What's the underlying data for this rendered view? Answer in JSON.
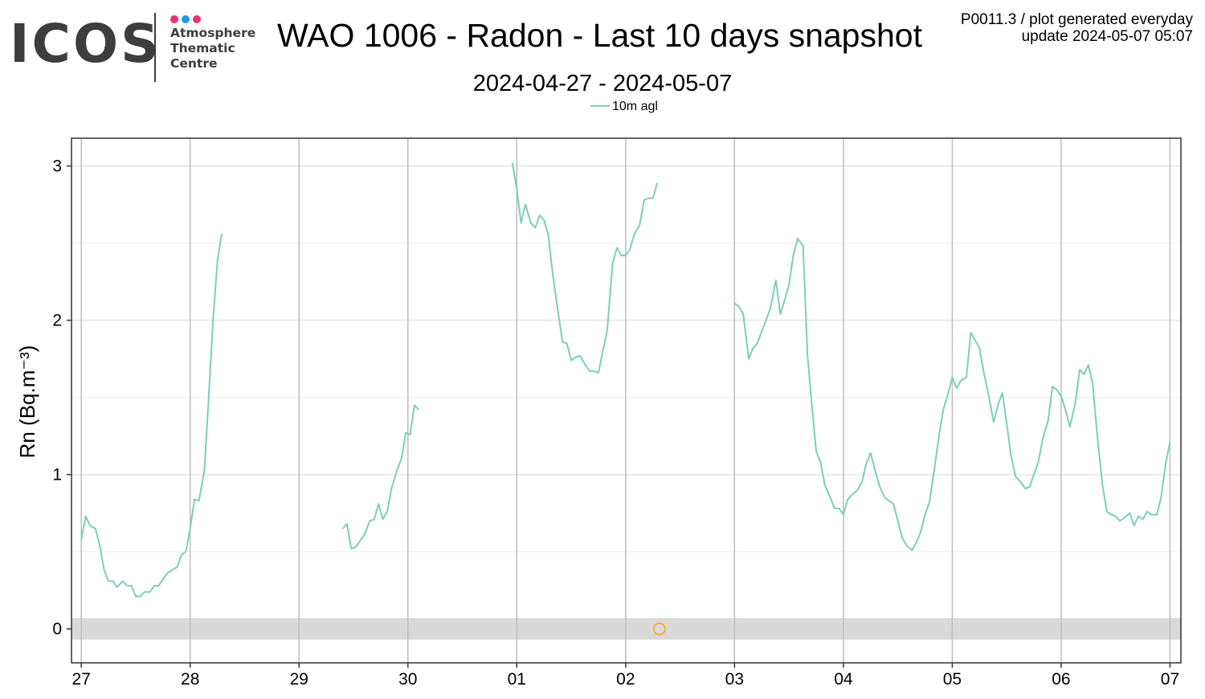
{
  "header": {
    "logo": {
      "word": "ICOS",
      "sub_lines": [
        "Atmosphere",
        "Thematic",
        "Centre"
      ],
      "dot_colors": [
        "#e8356d",
        "#1e9be4",
        "#e8356d"
      ]
    },
    "meta_line1": "P0011.3 / plot generated everyday",
    "meta_line2": "update  2024-05-07 05:07"
  },
  "chart_data": {
    "type": "line",
    "title": "WAO 1006 - Radon - Last 10 days snapshot",
    "subtitle": "2024-04-27 - 2024-05-07",
    "ylabel": "Rn (Bq.m⁻³)",
    "xlabel": "",
    "x_unit": "days since 2024-04-27 00:00",
    "xlim": [
      -0.09,
      10.1
    ],
    "ylim": [
      -0.22,
      3.18
    ],
    "x_ticks": [
      {
        "x": 0,
        "label": "27"
      },
      {
        "x": 1,
        "label": "28"
      },
      {
        "x": 2,
        "label": "29"
      },
      {
        "x": 3,
        "label": "30"
      },
      {
        "x": 4,
        "label": "01"
      },
      {
        "x": 5,
        "label": "02"
      },
      {
        "x": 6,
        "label": "03"
      },
      {
        "x": 7,
        "label": "04"
      },
      {
        "x": 8,
        "label": "05"
      },
      {
        "x": 9,
        "label": "06"
      },
      {
        "x": 10,
        "label": "07"
      }
    ],
    "y_ticks": [
      0,
      1,
      2,
      3
    ],
    "grid": true,
    "legend_position": "top",
    "colors": {
      "series": "#7fcdbb",
      "flag": "#ffa500",
      "band": "#d9d9d9"
    },
    "band": {
      "ymin": -0.07,
      "ymax": 0.07
    },
    "series": [
      {
        "name": "10m agl",
        "segments": [
          [
            [
              0.0,
              0.58
            ],
            [
              0.04,
              0.73
            ],
            [
              0.08,
              0.67
            ],
            [
              0.13,
              0.65
            ],
            [
              0.17,
              0.54
            ],
            [
              0.21,
              0.38
            ],
            [
              0.25,
              0.31
            ],
            [
              0.29,
              0.31
            ],
            [
              0.33,
              0.27
            ],
            [
              0.38,
              0.31
            ],
            [
              0.42,
              0.28
            ],
            [
              0.46,
              0.28
            ],
            [
              0.5,
              0.21
            ],
            [
              0.54,
              0.21
            ],
            [
              0.58,
              0.24
            ],
            [
              0.63,
              0.24
            ],
            [
              0.67,
              0.28
            ],
            [
              0.71,
              0.28
            ],
            [
              0.75,
              0.32
            ],
            [
              0.79,
              0.36
            ],
            [
              0.83,
              0.38
            ],
            [
              0.88,
              0.4
            ],
            [
              0.92,
              0.48
            ],
            [
              0.96,
              0.5
            ],
            [
              1.0,
              0.65
            ],
            [
              1.04,
              0.84
            ],
            [
              1.08,
              0.83
            ],
            [
              1.13,
              1.02
            ],
            [
              1.17,
              1.5
            ],
            [
              1.21,
              2.0
            ],
            [
              1.25,
              2.38
            ],
            [
              1.29,
              2.56
            ]
          ],
          [
            [
              2.4,
              0.65
            ],
            [
              2.44,
              0.68
            ],
            [
              2.48,
              0.52
            ],
            [
              2.52,
              0.53
            ],
            [
              2.56,
              0.57
            ],
            [
              2.6,
              0.61
            ],
            [
              2.65,
              0.7
            ],
            [
              2.69,
              0.71
            ],
            [
              2.73,
              0.81
            ],
            [
              2.77,
              0.71
            ],
            [
              2.81,
              0.76
            ],
            [
              2.85,
              0.91
            ],
            [
              2.9,
              1.03
            ],
            [
              2.94,
              1.1
            ],
            [
              2.98,
              1.27
            ],
            [
              3.02,
              1.26
            ],
            [
              3.06,
              1.45
            ],
            [
              3.1,
              1.42
            ]
          ],
          [
            [
              3.96,
              3.02
            ],
            [
              4.0,
              2.85
            ],
            [
              4.04,
              2.63
            ],
            [
              4.08,
              2.75
            ],
            [
              4.13,
              2.63
            ],
            [
              4.17,
              2.6
            ],
            [
              4.21,
              2.68
            ],
            [
              4.25,
              2.65
            ],
            [
              4.29,
              2.55
            ],
            [
              4.33,
              2.3
            ],
            [
              4.38,
              2.05
            ],
            [
              4.42,
              1.86
            ],
            [
              4.46,
              1.85
            ],
            [
              4.5,
              1.74
            ],
            [
              4.54,
              1.76
            ],
            [
              4.58,
              1.77
            ],
            [
              4.63,
              1.71
            ],
            [
              4.67,
              1.67
            ],
            [
              4.71,
              1.67
            ],
            [
              4.75,
              1.66
            ],
            [
              4.79,
              1.8
            ],
            [
              4.83,
              1.93
            ],
            [
              4.88,
              2.37
            ],
            [
              4.92,
              2.47
            ],
            [
              4.96,
              2.42
            ],
            [
              5.0,
              2.42
            ],
            [
              5.04,
              2.46
            ],
            [
              5.08,
              2.56
            ],
            [
              5.13,
              2.62
            ],
            [
              5.17,
              2.78
            ],
            [
              5.21,
              2.79
            ],
            [
              5.25,
              2.79
            ],
            [
              5.29,
              2.89
            ]
          ],
          [
            [
              6.0,
              2.11
            ],
            [
              6.04,
              2.09
            ],
            [
              6.08,
              2.04
            ],
            [
              6.13,
              1.75
            ],
            [
              6.17,
              1.82
            ],
            [
              6.21,
              1.85
            ],
            [
              6.25,
              1.93
            ],
            [
              6.29,
              2.0
            ],
            [
              6.33,
              2.08
            ],
            [
              6.38,
              2.26
            ],
            [
              6.42,
              2.04
            ],
            [
              6.46,
              2.13
            ],
            [
              6.5,
              2.23
            ],
            [
              6.54,
              2.42
            ],
            [
              6.58,
              2.53
            ],
            [
              6.63,
              2.48
            ],
            [
              6.67,
              1.78
            ],
            [
              6.71,
              1.45
            ],
            [
              6.75,
              1.15
            ],
            [
              6.79,
              1.08
            ],
            [
              6.83,
              0.93
            ],
            [
              6.88,
              0.85
            ],
            [
              6.92,
              0.78
            ],
            [
              6.96,
              0.78
            ],
            [
              7.0,
              0.74
            ],
            [
              7.04,
              0.84
            ],
            [
              7.08,
              0.87
            ],
            [
              7.13,
              0.9
            ],
            [
              7.17,
              0.95
            ],
            [
              7.21,
              1.07
            ],
            [
              7.25,
              1.14
            ],
            [
              7.29,
              1.03
            ],
            [
              7.33,
              0.93
            ],
            [
              7.38,
              0.85
            ],
            [
              7.42,
              0.83
            ],
            [
              7.46,
              0.81
            ],
            [
              7.5,
              0.7
            ],
            [
              7.54,
              0.59
            ],
            [
              7.58,
              0.54
            ],
            [
              7.63,
              0.51
            ],
            [
              7.67,
              0.56
            ],
            [
              7.71,
              0.63
            ],
            [
              7.75,
              0.74
            ],
            [
              7.79,
              0.82
            ],
            [
              7.83,
              1.01
            ],
            [
              7.88,
              1.26
            ],
            [
              7.92,
              1.43
            ],
            [
              7.96,
              1.52
            ],
            [
              8.0,
              1.63
            ],
            [
              8.04,
              1.56
            ],
            [
              8.08,
              1.61
            ],
            [
              8.13,
              1.63
            ],
            [
              8.17,
              1.92
            ],
            [
              8.21,
              1.87
            ],
            [
              8.25,
              1.82
            ],
            [
              8.29,
              1.66
            ],
            [
              8.33,
              1.53
            ],
            [
              8.38,
              1.34
            ],
            [
              8.42,
              1.45
            ],
            [
              8.46,
              1.53
            ],
            [
              8.5,
              1.33
            ],
            [
              8.54,
              1.12
            ],
            [
              8.58,
              0.99
            ],
            [
              8.63,
              0.95
            ],
            [
              8.67,
              0.91
            ],
            [
              8.71,
              0.92
            ],
            [
              8.75,
              1.0
            ],
            [
              8.79,
              1.08
            ],
            [
              8.83,
              1.23
            ],
            [
              8.88,
              1.35
            ],
            [
              8.92,
              1.57
            ],
            [
              8.96,
              1.55
            ],
            [
              9.0,
              1.51
            ],
            [
              9.04,
              1.42
            ],
            [
              9.08,
              1.31
            ],
            [
              9.13,
              1.46
            ],
            [
              9.17,
              1.68
            ],
            [
              9.21,
              1.65
            ],
            [
              9.25,
              1.71
            ],
            [
              9.29,
              1.59
            ],
            [
              9.33,
              1.27
            ],
            [
              9.38,
              0.93
            ],
            [
              9.42,
              0.76
            ],
            [
              9.46,
              0.74
            ],
            [
              9.5,
              0.73
            ],
            [
              9.54,
              0.7
            ],
            [
              9.58,
              0.72
            ],
            [
              9.63,
              0.75
            ],
            [
              9.67,
              0.67
            ],
            [
              9.71,
              0.73
            ],
            [
              9.75,
              0.71
            ],
            [
              9.79,
              0.76
            ],
            [
              9.83,
              0.74
            ],
            [
              9.88,
              0.74
            ],
            [
              9.92,
              0.86
            ],
            [
              9.96,
              1.07
            ],
            [
              10.0,
              1.21
            ]
          ]
        ]
      }
    ],
    "flag_points": [
      [
        5.31,
        0.0
      ]
    ]
  }
}
